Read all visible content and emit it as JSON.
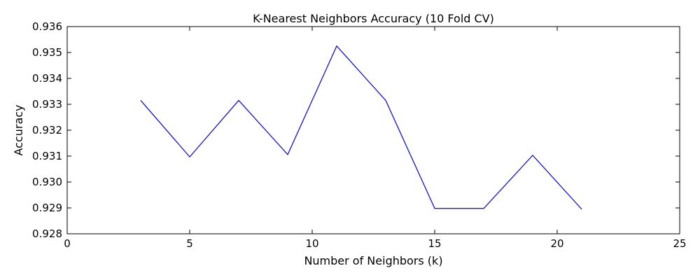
{
  "chart_data": {
    "type": "line",
    "title": "K-Nearest Neighbors Accuracy (10 Fold CV)",
    "xlabel": "Number of Neighbors (k)",
    "ylabel": "Accuracy",
    "xlim": [
      0,
      25
    ],
    "ylim": [
      0.928,
      0.936
    ],
    "xticks": [
      0,
      5,
      10,
      15,
      20,
      25
    ],
    "xtick_labels": [
      "0",
      "5",
      "10",
      "15",
      "20",
      "25"
    ],
    "yticks": [
      0.928,
      0.929,
      0.93,
      0.931,
      0.932,
      0.933,
      0.934,
      0.935,
      0.936
    ],
    "ytick_labels": [
      "0.928",
      "0.929",
      "0.930",
      "0.931",
      "0.932",
      "0.933",
      "0.934",
      "0.935",
      "0.936"
    ],
    "grid": false,
    "series": [
      {
        "color": "#0000ff",
        "x": [
          3,
          5,
          7,
          9,
          11,
          13,
          15,
          17,
          19,
          21
        ],
        "values": [
          0.93315,
          0.93097,
          0.93315,
          0.93106,
          0.93525,
          0.93315,
          0.92898,
          0.92898,
          0.93103,
          0.92895
        ]
      }
    ]
  }
}
